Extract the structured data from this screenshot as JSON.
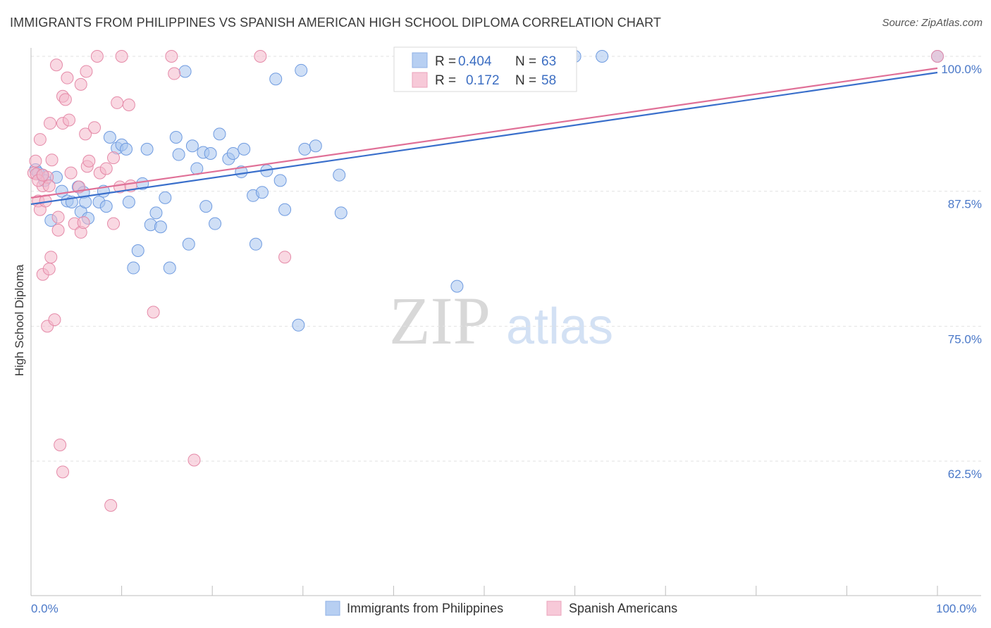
{
  "title": "IMMIGRANTS FROM PHILIPPINES VS SPANISH AMERICAN HIGH SCHOOL DIPLOMA CORRELATION CHART",
  "source": "Source: ZipAtlas.com",
  "watermark": {
    "zip": "ZIP",
    "atlas": "atlas"
  },
  "legend": {
    "r_label": "R =",
    "n_label": "N =",
    "items": [
      {
        "name": "Immigrants from Philippines",
        "r": "0.404",
        "n": "63",
        "color": "#a8c4ee",
        "line": "#3a6fcb"
      },
      {
        "name": "Spanish Americans",
        "r": "0.172",
        "n": "58",
        "color": "#f4b8cb",
        "line": "#e07097"
      }
    ]
  },
  "chart_data": {
    "type": "scatter",
    "title": "IMMIGRANTS FROM PHILIPPINES VS SPANISH AMERICAN HIGH SCHOOL DIPLOMA CORRELATION CHART",
    "xlabel": "",
    "ylabel": "High School Diploma",
    "xlim": [
      0,
      100
    ],
    "ylim": [
      50.5,
      101.5
    ],
    "x_tick_labels": [
      "0.0%",
      "100.0%"
    ],
    "y_ticks": [
      62.5,
      75.0,
      87.5,
      100.0
    ],
    "y_tick_labels": [
      "62.5%",
      "75.0%",
      "87.5%",
      "100.0%"
    ],
    "series": [
      {
        "name": "Immigrants from Philippines",
        "color": "#a8c4ee",
        "stroke": "#6f9be0",
        "trend": [
          [
            0,
            86.3
          ],
          [
            100,
            98.5
          ]
        ],
        "points": [
          [
            0.5,
            89.5
          ],
          [
            1.2,
            89.0
          ],
          [
            1.5,
            88.5
          ],
          [
            2.8,
            88.8
          ],
          [
            2.2,
            84.8
          ],
          [
            3.4,
            87.5
          ],
          [
            4.0,
            86.6
          ],
          [
            4.5,
            86.5
          ],
          [
            5.2,
            87.9
          ],
          [
            5.5,
            85.6
          ],
          [
            5.8,
            87.4
          ],
          [
            6.0,
            86.5
          ],
          [
            6.3,
            85.0
          ],
          [
            7.5,
            86.5
          ],
          [
            8.0,
            87.5
          ],
          [
            8.3,
            86.1
          ],
          [
            8.7,
            92.5
          ],
          [
            9.5,
            91.5
          ],
          [
            10.0,
            91.8
          ],
          [
            10.5,
            91.4
          ],
          [
            10.8,
            86.5
          ],
          [
            11.3,
            80.4
          ],
          [
            11.8,
            82.0
          ],
          [
            12.3,
            88.2
          ],
          [
            12.8,
            91.4
          ],
          [
            13.2,
            84.4
          ],
          [
            13.8,
            85.5
          ],
          [
            14.3,
            84.2
          ],
          [
            14.8,
            86.9
          ],
          [
            15.3,
            80.4
          ],
          [
            16.0,
            92.5
          ],
          [
            16.3,
            90.9
          ],
          [
            17.0,
            98.6
          ],
          [
            17.4,
            82.6
          ],
          [
            17.8,
            91.7
          ],
          [
            18.3,
            89.6
          ],
          [
            19.0,
            91.1
          ],
          [
            19.3,
            86.1
          ],
          [
            19.8,
            91.0
          ],
          [
            20.3,
            84.5
          ],
          [
            20.8,
            92.8
          ],
          [
            21.8,
            90.5
          ],
          [
            22.3,
            91.0
          ],
          [
            23.2,
            89.3
          ],
          [
            23.5,
            91.4
          ],
          [
            24.5,
            87.1
          ],
          [
            24.8,
            82.6
          ],
          [
            25.5,
            87.4
          ],
          [
            26.0,
            89.4
          ],
          [
            27.0,
            97.9
          ],
          [
            27.5,
            88.5
          ],
          [
            28.0,
            85.8
          ],
          [
            29.5,
            75.1
          ],
          [
            29.8,
            98.7
          ],
          [
            30.2,
            91.4
          ],
          [
            31.4,
            91.7
          ],
          [
            34.0,
            89.0
          ],
          [
            34.2,
            85.5
          ],
          [
            47.0,
            78.7
          ],
          [
            60.0,
            100.0
          ],
          [
            63.0,
            100.0
          ],
          [
            100.0,
            100.0
          ],
          [
            0.8,
            89.2
          ]
        ]
      },
      {
        "name": "Spanish Americans",
        "color": "#f4b8cb",
        "stroke": "#e58aa8",
        "trend": [
          [
            0,
            86.9
          ],
          [
            100,
            98.9
          ]
        ],
        "points": [
          [
            0.3,
            89.2
          ],
          [
            0.5,
            90.3
          ],
          [
            0.8,
            86.6
          ],
          [
            1.0,
            85.8
          ],
          [
            1.0,
            92.3
          ],
          [
            1.3,
            88.0
          ],
          [
            1.3,
            79.8
          ],
          [
            1.6,
            86.6
          ],
          [
            1.8,
            88.8
          ],
          [
            1.8,
            75.0
          ],
          [
            2.0,
            80.3
          ],
          [
            2.1,
            93.8
          ],
          [
            2.2,
            81.4
          ],
          [
            2.3,
            90.4
          ],
          [
            2.6,
            75.6
          ],
          [
            2.8,
            99.2
          ],
          [
            3.0,
            83.9
          ],
          [
            3.0,
            85.1
          ],
          [
            3.2,
            64.0
          ],
          [
            3.5,
            93.8
          ],
          [
            3.5,
            61.5
          ],
          [
            3.5,
            96.3
          ],
          [
            3.8,
            96.0
          ],
          [
            4.0,
            98.0
          ],
          [
            4.2,
            94.1
          ],
          [
            4.4,
            89.2
          ],
          [
            4.8,
            84.5
          ],
          [
            5.3,
            87.9
          ],
          [
            5.5,
            97.4
          ],
          [
            5.5,
            83.7
          ],
          [
            5.8,
            84.6
          ],
          [
            6.0,
            92.8
          ],
          [
            6.2,
            89.8
          ],
          [
            6.4,
            90.3
          ],
          [
            7.0,
            93.4
          ],
          [
            7.3,
            100.0
          ],
          [
            7.6,
            89.2
          ],
          [
            8.3,
            89.6
          ],
          [
            8.8,
            58.4
          ],
          [
            9.1,
            90.6
          ],
          [
            9.1,
            84.5
          ],
          [
            9.5,
            95.7
          ],
          [
            9.8,
            87.9
          ],
          [
            10.0,
            100.0
          ],
          [
            10.8,
            95.5
          ],
          [
            11.0,
            88.0
          ],
          [
            13.5,
            76.3
          ],
          [
            15.5,
            100.0
          ],
          [
            15.8,
            98.4
          ],
          [
            18.0,
            62.6
          ],
          [
            25.3,
            100.0
          ],
          [
            28.0,
            81.4
          ],
          [
            100.0,
            100.0
          ],
          [
            0.6,
            89.1
          ],
          [
            0.8,
            88.5
          ],
          [
            1.3,
            89.0
          ],
          [
            2.0,
            88.0
          ],
          [
            6.1,
            98.6
          ]
        ]
      }
    ]
  }
}
